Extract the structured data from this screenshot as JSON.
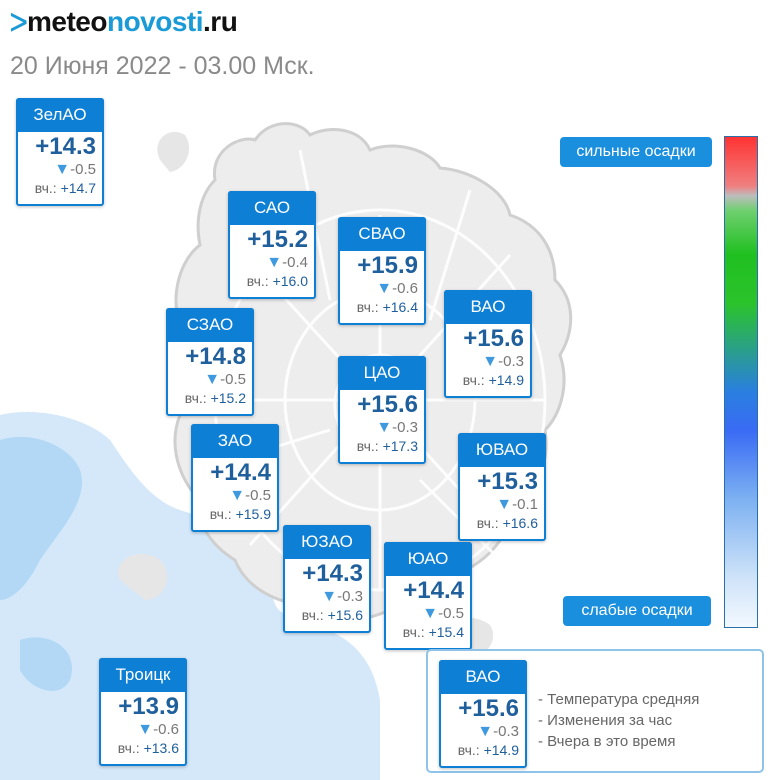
{
  "header": {
    "logo_mark": "ᐳ",
    "logo_part1": "meteo",
    "logo_part2": "novosti",
    "logo_part3": ".ru",
    "datetime": "20 Июня 2022 - 03.00 Мск."
  },
  "scale": {
    "top_label": "сильные осадки",
    "bottom_label": "слабые осадки"
  },
  "yesterday_label": "вч.:",
  "districts": [
    {
      "name": "ЗелАО",
      "temp": "+14.3",
      "change": "-0.5",
      "yesterday": "+14.7"
    },
    {
      "name": "САО",
      "temp": "+15.2",
      "change": "-0.4",
      "yesterday": "+16.0"
    },
    {
      "name": "СВАО",
      "temp": "+15.9",
      "change": "-0.6",
      "yesterday": "+16.4"
    },
    {
      "name": "ВАО",
      "temp": "+15.6",
      "change": "-0.3",
      "yesterday": "+14.9"
    },
    {
      "name": "СЗАО",
      "temp": "+14.8",
      "change": "-0.5",
      "yesterday": "+15.2"
    },
    {
      "name": "ЦАО",
      "temp": "+15.6",
      "change": "-0.3",
      "yesterday": "+17.3"
    },
    {
      "name": "ЗАО",
      "temp": "+14.4",
      "change": "-0.5",
      "yesterday": "+15.9"
    },
    {
      "name": "ЮВАО",
      "temp": "+15.3",
      "change": "-0.1",
      "yesterday": "+16.6"
    },
    {
      "name": "ЮЗАО",
      "temp": "+14.3",
      "change": "-0.3",
      "yesterday": "+15.6"
    },
    {
      "name": "ЮАО",
      "temp": "+14.4",
      "change": "-0.5",
      "yesterday": "+15.4"
    },
    {
      "name": "Троицк",
      "temp": "+13.9",
      "change": "-0.6",
      "yesterday": "+13.6"
    }
  ],
  "legend": {
    "sample": {
      "name": "ВАО",
      "temp": "+15.6",
      "change": "-0.3",
      "yesterday": "+14.9"
    },
    "line1": "- Температура средняя",
    "line2": "- Изменения за час",
    "line3": "- Вчера в это время"
  },
  "colors": {
    "card_header": "#0d7fd4",
    "temp_text": "#1f5f9c",
    "scale_button": "#1a8fde",
    "precip": "#b9dcf6"
  }
}
